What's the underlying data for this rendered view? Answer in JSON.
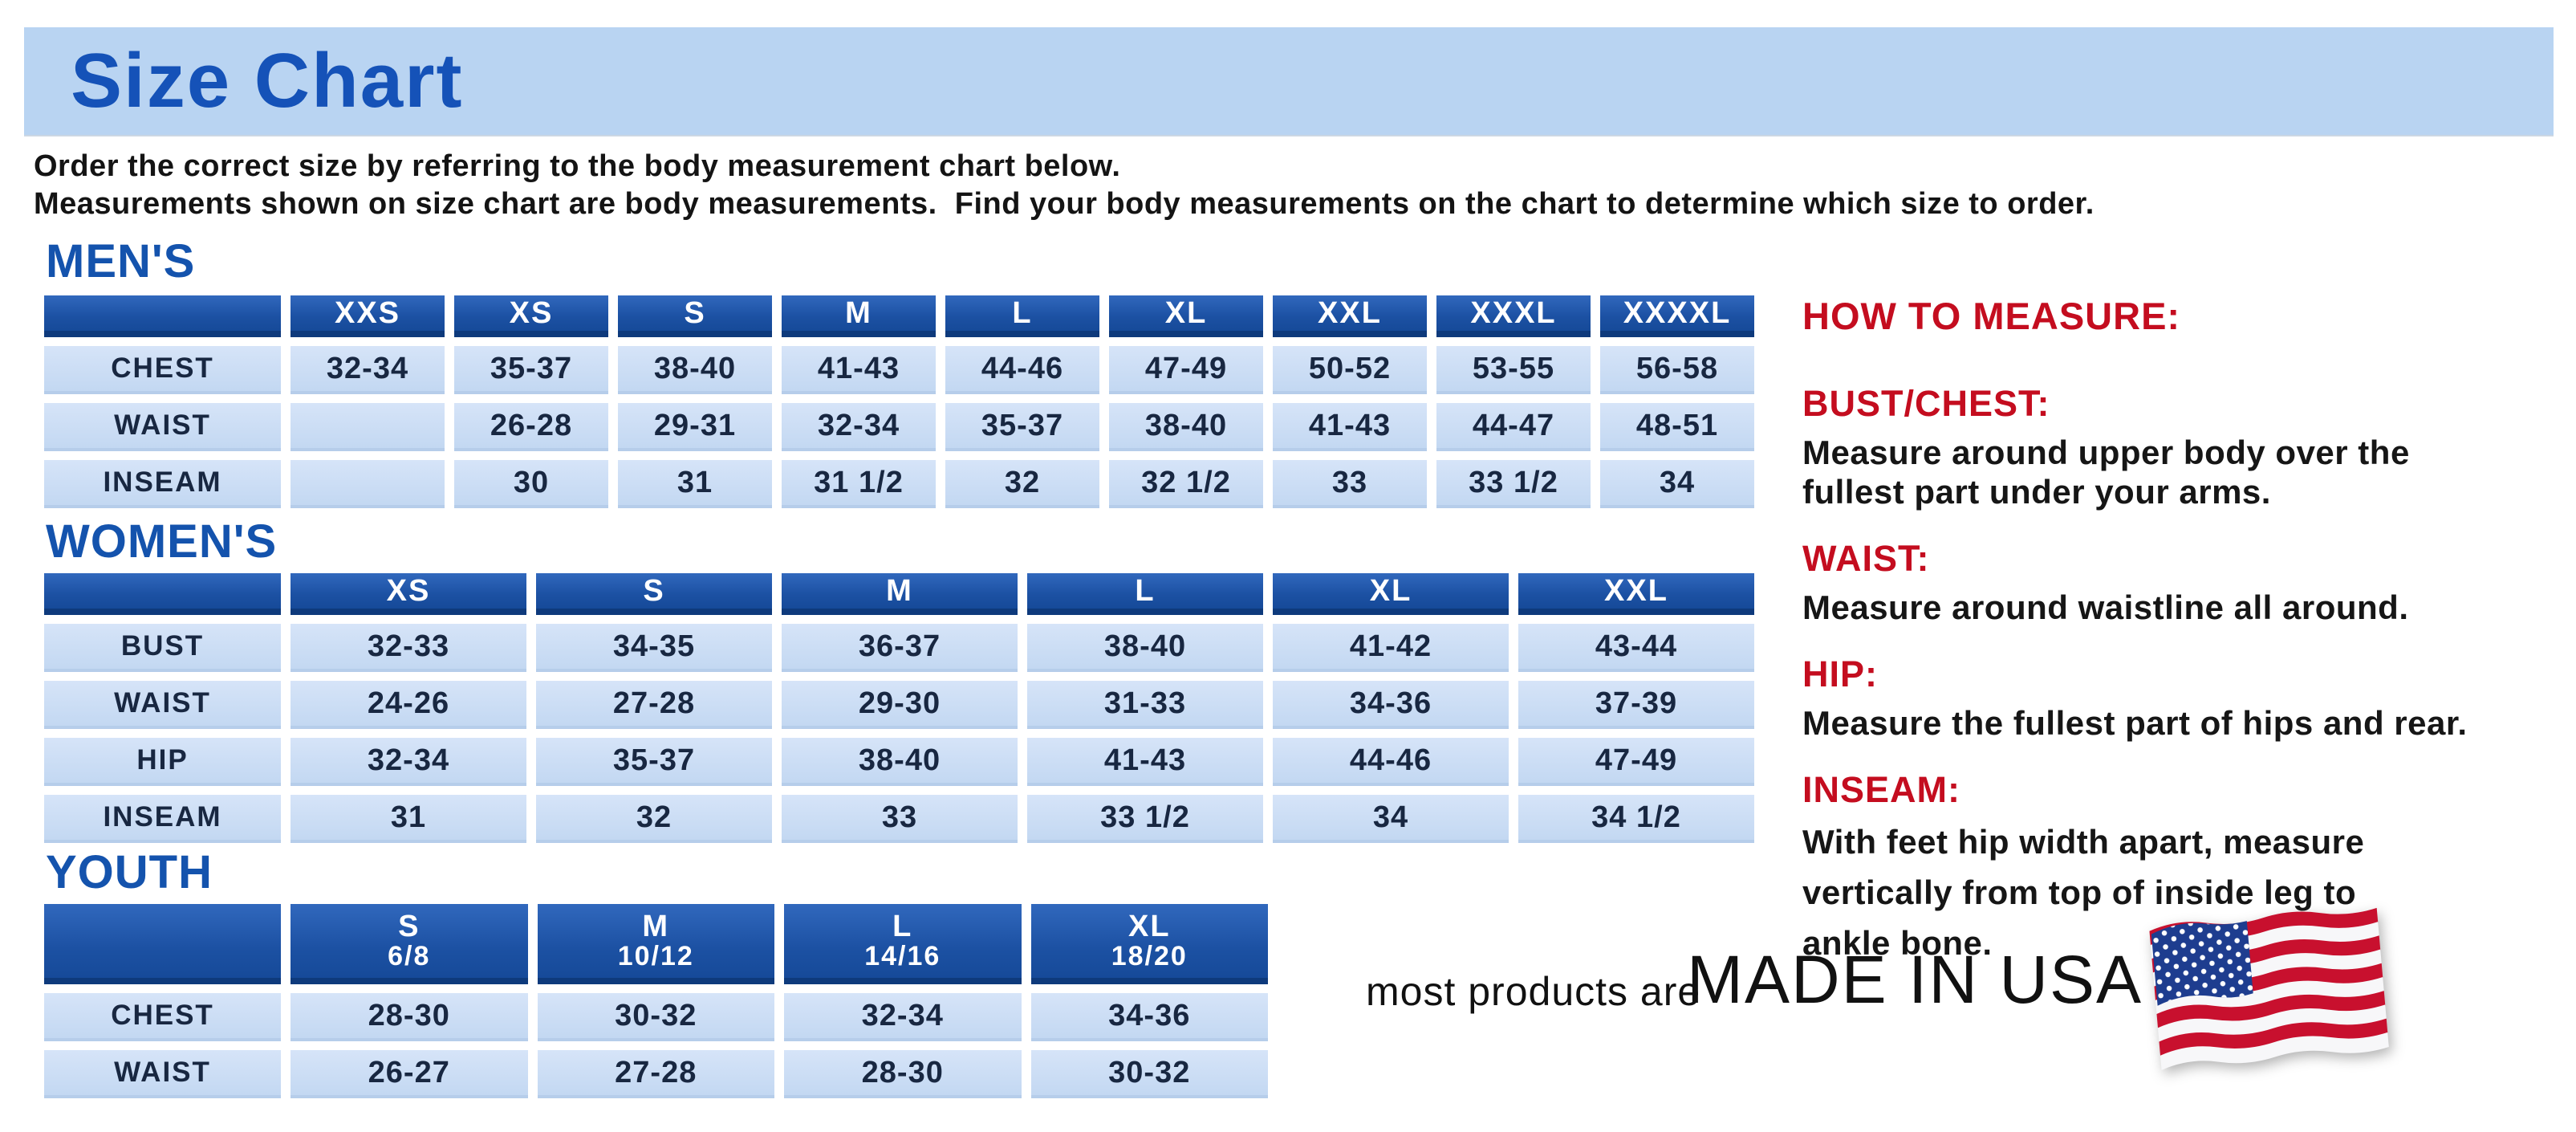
{
  "page": {
    "title": "Size Chart",
    "intro_line1": "Order the correct size by referring to the body measurement chart below.",
    "intro_line2": "Measurements shown on size chart are body measurements.  Find your body measurements on the chart to determine which size to order."
  },
  "tables": {
    "men": {
      "heading": "MEN'S",
      "columns": [
        "XXS",
        "XS",
        "S",
        "M",
        "L",
        "XL",
        "XXL",
        "XXXL",
        "XXXXL"
      ],
      "rows": [
        {
          "label": "CHEST",
          "values": [
            "32-34",
            "35-37",
            "38-40",
            "41-43",
            "44-46",
            "47-49",
            "50-52",
            "53-55",
            "56-58"
          ]
        },
        {
          "label": "WAIST",
          "values": [
            "",
            "26-28",
            "29-31",
            "32-34",
            "35-37",
            "38-40",
            "41-43",
            "44-47",
            "48-51"
          ]
        },
        {
          "label": "INSEAM",
          "values": [
            "",
            "30",
            "31",
            "31 1/2",
            "32",
            "32 1/2",
            "33",
            "33 1/2",
            "34"
          ]
        }
      ]
    },
    "women": {
      "heading": "WOMEN'S",
      "columns": [
        "XS",
        "S",
        "M",
        "L",
        "XL",
        "XXL"
      ],
      "rows": [
        {
          "label": "BUST",
          "values": [
            "32-33",
            "34-35",
            "36-37",
            "38-40",
            "41-42",
            "43-44"
          ]
        },
        {
          "label": "WAIST",
          "values": [
            "24-26",
            "27-28",
            "29-30",
            "31-33",
            "34-36",
            "37-39"
          ]
        },
        {
          "label": "HIP",
          "values": [
            "32-34",
            "35-37",
            "38-40",
            "41-43",
            "44-46",
            "47-49"
          ]
        },
        {
          "label": "INSEAM",
          "values": [
            "31",
            "32",
            "33",
            "33 1/2",
            "34",
            "34 1/2"
          ]
        }
      ]
    },
    "youth": {
      "heading": "YOUTH",
      "columns": [
        "S\n6/8",
        "M\n10/12",
        "L\n14/16",
        "XL\n18/20"
      ],
      "rows": [
        {
          "label": "CHEST",
          "values": [
            "28-30",
            "30-32",
            "32-34",
            "34-36"
          ]
        },
        {
          "label": "WAIST",
          "values": [
            "26-27",
            "27-28",
            "28-30",
            "30-32"
          ]
        }
      ]
    }
  },
  "how_to_measure": {
    "title": "HOW TO MEASURE:",
    "sections": [
      {
        "heading": "BUST/CHEST:",
        "lines": [
          "Measure around upper body over the",
          "fullest part under your arms."
        ]
      },
      {
        "heading": "WAIST:",
        "lines": [
          "Measure around waistline all around."
        ]
      },
      {
        "heading": "HIP:",
        "lines": [
          "Measure the fullest part of hips and rear."
        ]
      },
      {
        "heading": "INSEAM:",
        "lines": [
          "With feet hip width apart, measure",
          "vertically from top of inside leg to",
          "ankle bone."
        ],
        "extra_gap": true
      }
    ]
  },
  "footer": {
    "prefix": "most products are",
    "made_in": "MADE IN USA",
    "flag_icon": "usa-flag"
  },
  "colors": {
    "banner_bg": "#b9d4f2",
    "title_blue": "#1552b8",
    "section_heading_blue": "#1453ad",
    "table_header_blue": "#1c51a3",
    "table_header_border": "#0e3a7c",
    "cell_bg": "#c9dcf4",
    "cell_text": "#182741",
    "red_heading": "#c40d1f",
    "flag_red": "#c8102e",
    "flag_blue": "#1e3d8f"
  }
}
